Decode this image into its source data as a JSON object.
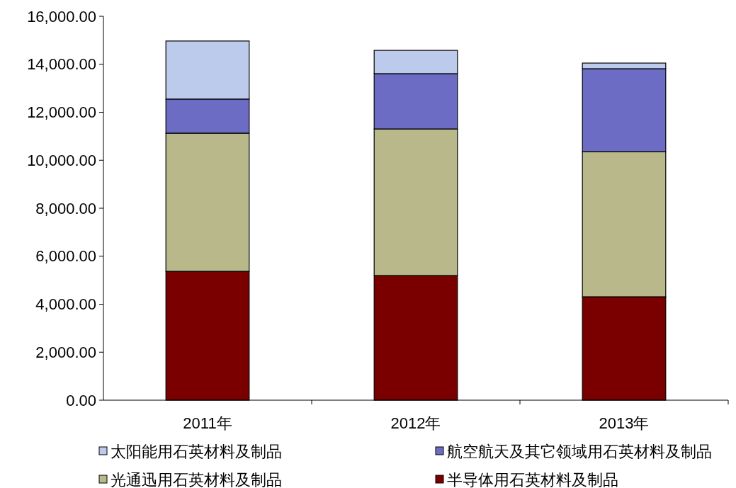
{
  "chart_data": {
    "type": "bar",
    "stacked": true,
    "categories": [
      "2011年",
      "2012年",
      "2013年"
    ],
    "series": [
      {
        "name": "半导体用石英材料及制品",
        "color": "#7a0000",
        "values": [
          5370,
          5195,
          4310
        ]
      },
      {
        "name": "光通迅用石英材料及制品",
        "color": "#b8b88a",
        "values": [
          5760,
          6110,
          6050
        ]
      },
      {
        "name": "航空航天及其它领域用石英材料及制品",
        "color": "#6c6cc4",
        "values": [
          1420,
          2305,
          3455
        ]
      },
      {
        "name": "太阳能用石英材料及制品",
        "color": "#bccbec",
        "values": [
          2420,
          970,
          235
        ]
      }
    ],
    "ylim": [
      0,
      16000
    ],
    "yticks": [
      {
        "value": 0,
        "label": "0.00"
      },
      {
        "value": 2000,
        "label": "2,000.00"
      },
      {
        "value": 4000,
        "label": "4,000.00"
      },
      {
        "value": 6000,
        "label": "6,000.00"
      },
      {
        "value": 8000,
        "label": "8,000.00"
      },
      {
        "value": 10000,
        "label": "10,000.00"
      },
      {
        "value": 12000,
        "label": "12,000.00"
      },
      {
        "value": 14000,
        "label": "14,000.00"
      },
      {
        "value": 16000,
        "label": "16,000.00"
      }
    ],
    "grid": false,
    "legend": "bottom"
  }
}
